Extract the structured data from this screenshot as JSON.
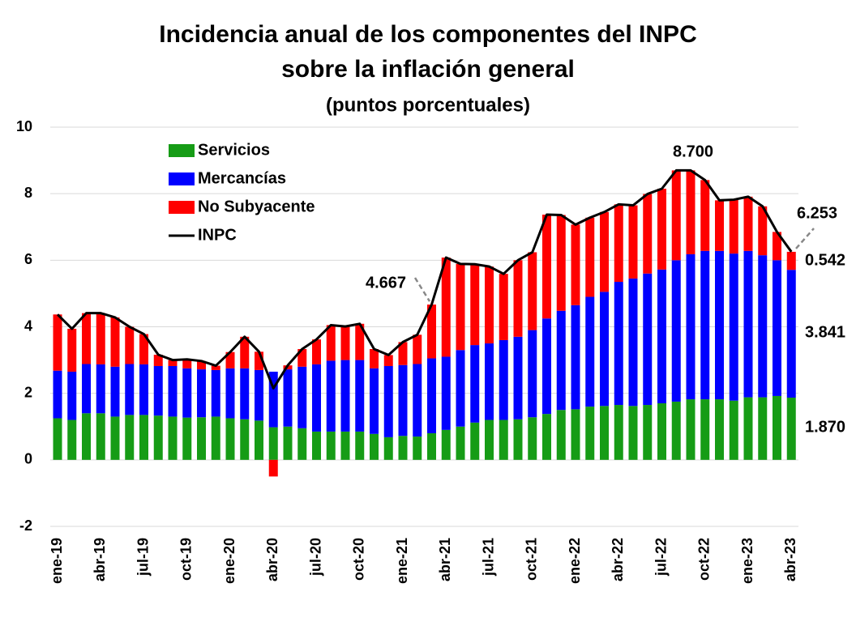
{
  "chart_data": {
    "type": "stacked_bar_line",
    "title": [
      "Incidencia anual de los componentes del INPC",
      "sobre la inflación general"
    ],
    "subtitle": "(puntos porcentuales)",
    "categories": [
      "ene-19",
      null,
      null,
      "abr-19",
      null,
      null,
      "jul-19",
      null,
      null,
      "oct-19",
      null,
      null,
      "ene-20",
      null,
      null,
      "abr-20",
      null,
      null,
      "jul-20",
      null,
      null,
      "oct-20",
      null,
      null,
      "ene-21",
      null,
      null,
      "abr-21",
      null,
      null,
      "jul-21",
      null,
      null,
      "oct-21",
      null,
      null,
      "ene-22",
      null,
      null,
      "abr-22",
      null,
      null,
      "jul-22",
      null,
      null,
      "oct-22",
      null,
      null,
      "ene-23",
      null,
      null,
      "abr-23"
    ],
    "series": [
      {
        "name": "Servicios",
        "color": "#169c16",
        "kind": "bar",
        "values": [
          1.25,
          1.2,
          1.4,
          1.4,
          1.3,
          1.35,
          1.35,
          1.33,
          1.3,
          1.27,
          1.28,
          1.3,
          1.25,
          1.22,
          1.18,
          0.98,
          1.0,
          0.95,
          0.85,
          0.85,
          0.85,
          0.85,
          0.78,
          0.68,
          0.72,
          0.7,
          0.8,
          0.9,
          1.0,
          1.12,
          1.2,
          1.2,
          1.22,
          1.28,
          1.38,
          1.5,
          1.52,
          1.6,
          1.62,
          1.65,
          1.62,
          1.65,
          1.7,
          1.75,
          1.82,
          1.82,
          1.82,
          1.78,
          1.88,
          1.88,
          1.92,
          1.87
        ],
        "value_labels": [
          null,
          null,
          null,
          null,
          null,
          null,
          null,
          null,
          null,
          null,
          null,
          null,
          null,
          null,
          null,
          null,
          null,
          null,
          null,
          null,
          null,
          null,
          null,
          null,
          null,
          null,
          null,
          null,
          null,
          null,
          null,
          null,
          null,
          null,
          null,
          null,
          null,
          null,
          null,
          null,
          null,
          null,
          null,
          null,
          null,
          null,
          null,
          null,
          null,
          null,
          null,
          "1.870"
        ]
      },
      {
        "name": "Mercancías",
        "color": "#0000ff",
        "kind": "bar",
        "values": [
          1.43,
          1.45,
          1.48,
          1.47,
          1.5,
          1.53,
          1.52,
          1.49,
          1.52,
          1.48,
          1.44,
          1.4,
          1.5,
          1.53,
          1.52,
          1.67,
          1.72,
          1.85,
          2.02,
          2.13,
          2.15,
          2.15,
          1.97,
          2.14,
          2.13,
          2.18,
          2.25,
          2.2,
          2.3,
          2.33,
          2.3,
          2.4,
          2.48,
          2.62,
          2.87,
          2.98,
          3.13,
          3.3,
          3.43,
          3.7,
          3.83,
          3.95,
          4.02,
          4.25,
          4.36,
          4.46,
          4.46,
          4.42,
          4.4,
          4.27,
          4.08,
          3.841
        ]
      },
      {
        "name": "No Subyacente",
        "color": "#ff0000",
        "kind": "bar",
        "values": [
          1.69,
          1.29,
          1.53,
          1.54,
          1.48,
          1.12,
          0.91,
          0.34,
          0.18,
          0.27,
          0.25,
          0.13,
          0.49,
          0.95,
          0.55,
          -0.5,
          0.12,
          0.53,
          0.75,
          1.07,
          1.01,
          1.09,
          0.58,
          0.33,
          0.69,
          0.88,
          1.617,
          2.98,
          2.59,
          2.43,
          2.31,
          1.99,
          2.3,
          2.34,
          3.12,
          2.88,
          2.42,
          2.38,
          2.4,
          2.33,
          2.2,
          2.39,
          2.43,
          2.7,
          2.52,
          2.13,
          1.52,
          1.62,
          1.63,
          1.47,
          0.85,
          0.542
        ]
      },
      {
        "name": "INPC",
        "color": "#000000",
        "kind": "line",
        "values": [
          4.37,
          3.94,
          4.41,
          4.41,
          4.28,
          4.0,
          3.78,
          3.16,
          3.0,
          3.02,
          2.97,
          2.83,
          3.24,
          3.7,
          3.25,
          2.15,
          2.84,
          3.33,
          3.62,
          4.05,
          4.01,
          4.09,
          3.33,
          3.15,
          3.54,
          3.76,
          4.667,
          6.08,
          5.89,
          5.88,
          5.81,
          5.59,
          6.0,
          6.24,
          7.37,
          7.36,
          7.07,
          7.28,
          7.45,
          7.68,
          7.65,
          7.99,
          8.15,
          8.7,
          8.7,
          8.41,
          7.8,
          7.82,
          7.91,
          7.62,
          6.85,
          6.253
        ],
        "value_labels": [
          null,
          null,
          null,
          null,
          null,
          null,
          null,
          null,
          null,
          null,
          null,
          null,
          null,
          null,
          null,
          null,
          null,
          null,
          null,
          null,
          null,
          null,
          null,
          null,
          null,
          null,
          null,
          null,
          null,
          null,
          null,
          null,
          null,
          null,
          null,
          null,
          null,
          null,
          null,
          null,
          null,
          null,
          null,
          null,
          "8.700",
          null,
          null,
          null,
          null,
          null,
          null,
          null
        ]
      }
    ],
    "ylim": [
      -2,
      10
    ],
    "yticks": [
      -2,
      0,
      2,
      4,
      6,
      8,
      10
    ],
    "grid": true,
    "legend": "top-left"
  }
}
